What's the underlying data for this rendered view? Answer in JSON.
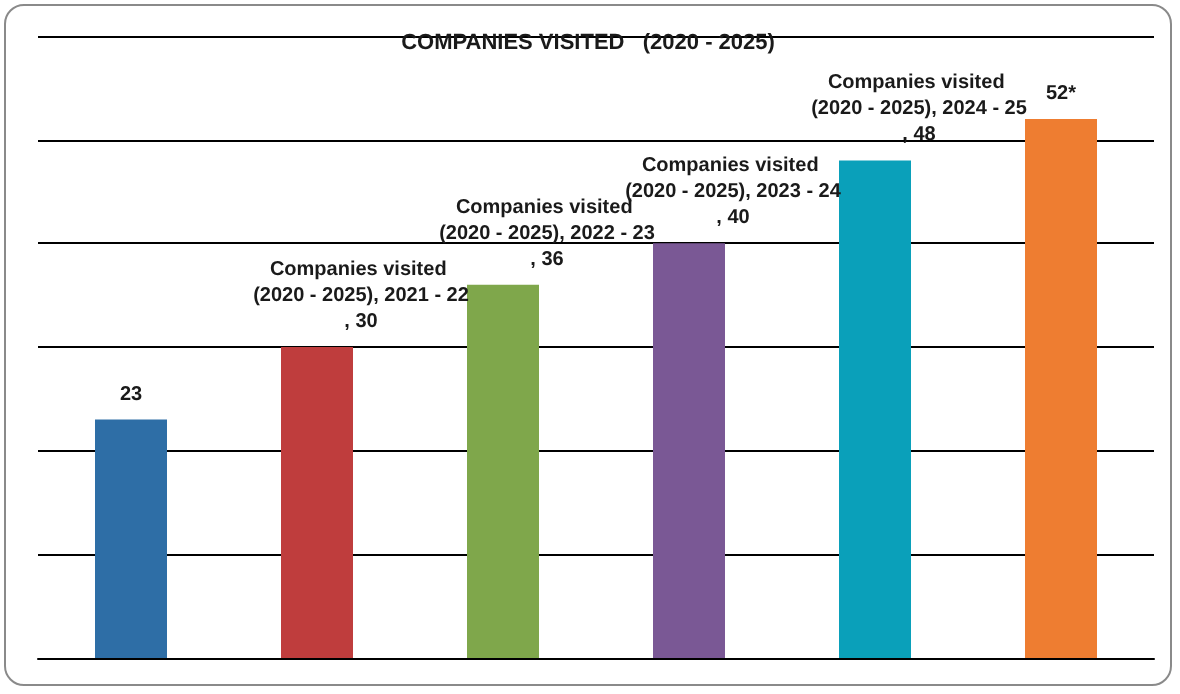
{
  "chart_data": {
    "type": "bar",
    "title": "COMPANIES VISITED   (2020 - 2025)",
    "categories": [
      null,
      null,
      null,
      null,
      null,
      null
    ],
    "values": [
      23,
      30,
      36,
      40,
      48,
      52
    ],
    "colors": [
      "#2e6ea6",
      "#bf3d3d",
      "#7fa74b",
      "#7a5895",
      "#0aa0ba",
      "#ee7d31"
    ],
    "value_labels": [
      "23",
      "Companies visited (2020 - 2025), 2021 - 22, 30",
      "Companies visited (2020 - 2025), 2022 - 23, 36",
      "Companies visited (2020 - 2025), 2023 - 24, 40",
      "Companies visited (2020 - 2025), 2024 - 25, 48",
      "52*"
    ],
    "ylim": [
      0,
      60
    ],
    "yticks": [
      {
        "value": 0,
        "label": null
      },
      {
        "value": 10,
        "label": null
      },
      {
        "value": 20,
        "label": null
      },
      {
        "value": 30,
        "label": null
      },
      {
        "value": 40,
        "label": null
      },
      {
        "value": 50,
        "label": null
      },
      {
        "value": 60,
        "label": null
      }
    ],
    "grid": "y"
  }
}
